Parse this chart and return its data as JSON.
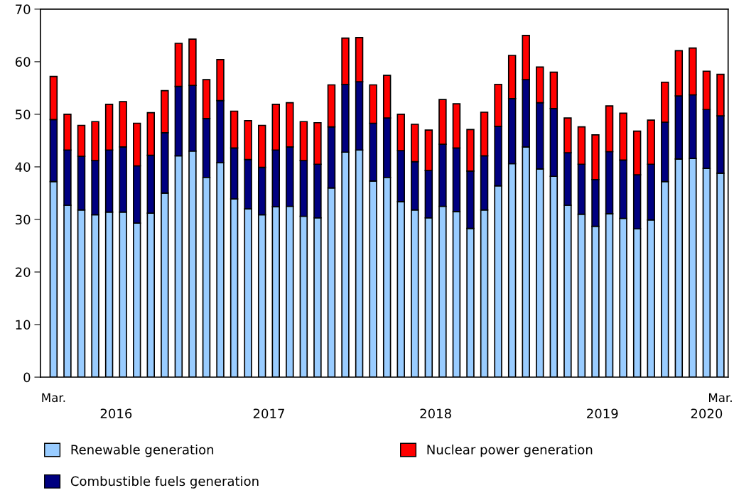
{
  "chart_data": {
    "type": "bar",
    "stacked": true,
    "categories": [
      "Mar.",
      null,
      null,
      null,
      null,
      null,
      null,
      null,
      null,
      null,
      null,
      null,
      null,
      null,
      null,
      null,
      null,
      null,
      null,
      null,
      null,
      null,
      null,
      null,
      null,
      null,
      null,
      null,
      null,
      null,
      null,
      null,
      null,
      null,
      null,
      null,
      null,
      null,
      null,
      null,
      null,
      null,
      null,
      null,
      null,
      null,
      null,
      null,
      "Mar."
    ],
    "annotations": [
      "2016",
      "2017",
      "2018",
      "2019",
      "2020"
    ],
    "ylim": [
      0,
      70
    ],
    "yticks": [
      0,
      10,
      20,
      30,
      40,
      50,
      60,
      70
    ],
    "grid": false,
    "legend": "bottom",
    "series": [
      {
        "name": "Renewable generation",
        "color": "#99ccff",
        "values": [
          37.2,
          32.7,
          31.8,
          30.9,
          31.4,
          31.4,
          29.3,
          31.2,
          35.0,
          42.1,
          43.0,
          38.0,
          40.8,
          33.9,
          32.0,
          30.9,
          32.4,
          32.5,
          30.6,
          30.3,
          36.0,
          42.8,
          43.2,
          37.3,
          38.0,
          33.4,
          31.8,
          30.3,
          32.5,
          31.5,
          28.3,
          31.8,
          36.4,
          40.6,
          43.8,
          39.6,
          38.2,
          32.7,
          31.0,
          28.7,
          31.1,
          30.2,
          28.2,
          29.9,
          37.2,
          41.5,
          41.6,
          39.7,
          38.8
        ]
      },
      {
        "name": "Combustible fuels generation",
        "color": "#000080",
        "values": [
          11.8,
          10.5,
          10.2,
          10.3,
          11.8,
          12.4,
          10.9,
          11.0,
          11.5,
          13.2,
          12.5,
          11.2,
          11.8,
          9.7,
          9.4,
          9.0,
          10.8,
          11.3,
          10.6,
          10.2,
          11.6,
          12.9,
          13.0,
          11.0,
          11.3,
          9.7,
          9.2,
          9.0,
          11.8,
          12.1,
          10.9,
          10.3,
          11.3,
          12.4,
          12.8,
          12.6,
          12.9,
          10.0,
          9.5,
          8.9,
          11.8,
          11.1,
          10.3,
          10.6,
          11.3,
          12.0,
          12.1,
          11.2,
          10.9
        ]
      },
      {
        "name": "Nuclear power generation",
        "color": "#ff0000",
        "values": [
          8.2,
          6.8,
          5.9,
          7.4,
          8.7,
          8.6,
          8.1,
          8.1,
          8.0,
          8.2,
          8.8,
          7.4,
          7.8,
          7.0,
          7.4,
          8.0,
          8.7,
          8.4,
          7.4,
          7.9,
          8.0,
          8.8,
          8.4,
          7.3,
          8.1,
          6.9,
          7.1,
          7.7,
          8.5,
          8.4,
          7.9,
          8.3,
          8.0,
          8.2,
          8.4,
          6.8,
          6.9,
          6.6,
          7.1,
          8.5,
          8.7,
          8.9,
          8.3,
          8.4,
          7.6,
          8.6,
          8.9,
          7.3,
          7.9
        ]
      }
    ]
  }
}
